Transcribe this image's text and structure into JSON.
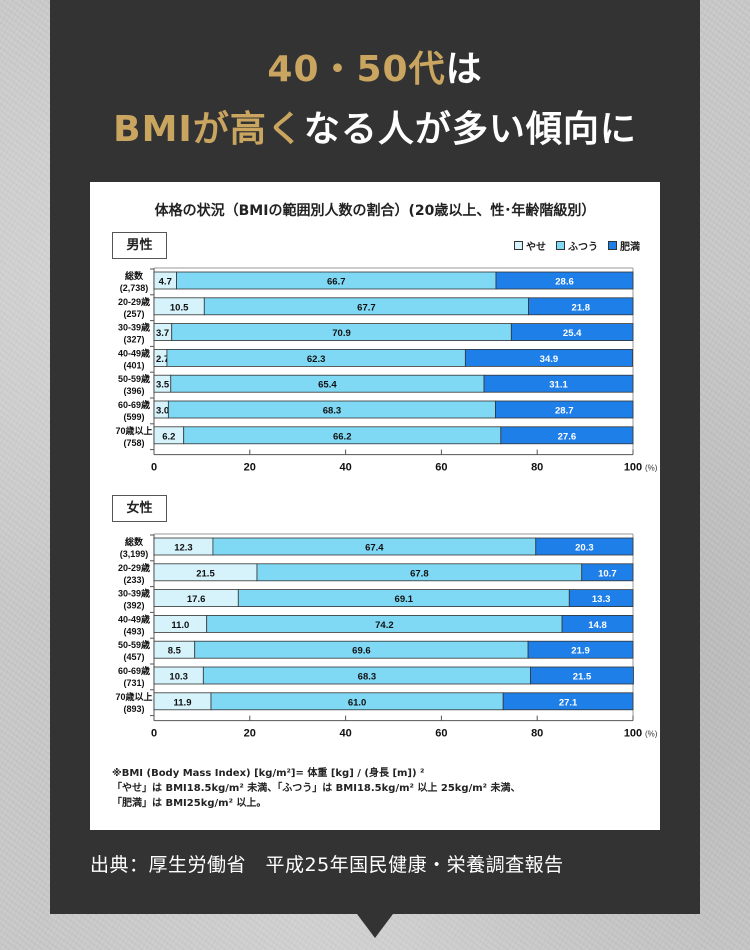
{
  "headline": {
    "line1_gold": "40・50代",
    "line1_white": "は",
    "line2_gold": "BMIが高く",
    "line2_white": "なる人が多い傾向に"
  },
  "colors": {
    "panel": "#333333",
    "gold": "#c9a560",
    "yase": "#d6f3fb",
    "futsuu": "#7fd9f5",
    "himan": "#1f7fe8"
  },
  "chart_data": {
    "type": "bar",
    "orientation": "horizontal-stacked-100",
    "title": "体格の状況（BMIの範囲別人数の割合）(20歳以上、性･年齢階級別）",
    "legend": [
      "やせ",
      "ふつう",
      "肥満"
    ],
    "legend_position": "top-right",
    "xlim": [
      0,
      100
    ],
    "xticks": [
      "0",
      "20",
      "40",
      "60",
      "80",
      "100"
    ],
    "x_unit": "(%)",
    "panels": [
      {
        "label": "男性",
        "categories": [
          {
            "name": "総数",
            "n": "(2,738)"
          },
          {
            "name": "20-29歳",
            "n": "(257)"
          },
          {
            "name": "30-39歳",
            "n": "(327)"
          },
          {
            "name": "40-49歳",
            "n": "(401)"
          },
          {
            "name": "50-59歳",
            "n": "(396)"
          },
          {
            "name": "60-69歳",
            "n": "(599)"
          },
          {
            "name": "70歳以上",
            "n": "(758)"
          }
        ],
        "series": [
          {
            "name": "やせ",
            "values": [
              4.7,
              10.5,
              3.7,
              2.7,
              3.5,
              3.0,
              6.2
            ]
          },
          {
            "name": "ふつう",
            "values": [
              66.7,
              67.7,
              70.9,
              62.3,
              65.4,
              68.3,
              66.2
            ]
          },
          {
            "name": "肥満",
            "values": [
              28.6,
              21.8,
              25.4,
              34.9,
              31.1,
              28.7,
              27.6
            ]
          }
        ]
      },
      {
        "label": "女性",
        "categories": [
          {
            "name": "総数",
            "n": "(3,199)"
          },
          {
            "name": "20-29歳",
            "n": "(233)"
          },
          {
            "name": "30-39歳",
            "n": "(392)"
          },
          {
            "name": "40-49歳",
            "n": "(493)"
          },
          {
            "name": "50-59歳",
            "n": "(457)"
          },
          {
            "name": "60-69歳",
            "n": "(731)"
          },
          {
            "name": "70歳以上",
            "n": "(893)"
          }
        ],
        "series": [
          {
            "name": "やせ",
            "values": [
              12.3,
              21.5,
              17.6,
              11.0,
              8.5,
              10.3,
              11.9
            ]
          },
          {
            "name": "ふつう",
            "values": [
              67.4,
              67.8,
              69.1,
              74.2,
              69.6,
              68.3,
              61.0
            ]
          },
          {
            "name": "肥満",
            "values": [
              20.3,
              10.7,
              13.3,
              14.8,
              21.9,
              21.5,
              27.1
            ]
          }
        ]
      }
    ]
  },
  "note": {
    "line1": "※BMI (Body Mass Index) [kg/m²]= 体重 [kg] / (身長 [m]) ²",
    "line2": "「やせ」は BMI18.5kg/m² 未満、「ふつう」は BMI18.5kg/m² 以上 25kg/m² 未満、",
    "line3": "「肥満」は BMI25kg/m² 以上。"
  },
  "source": "出典：厚生労働省　平成25年国民健康・栄養調査報告"
}
